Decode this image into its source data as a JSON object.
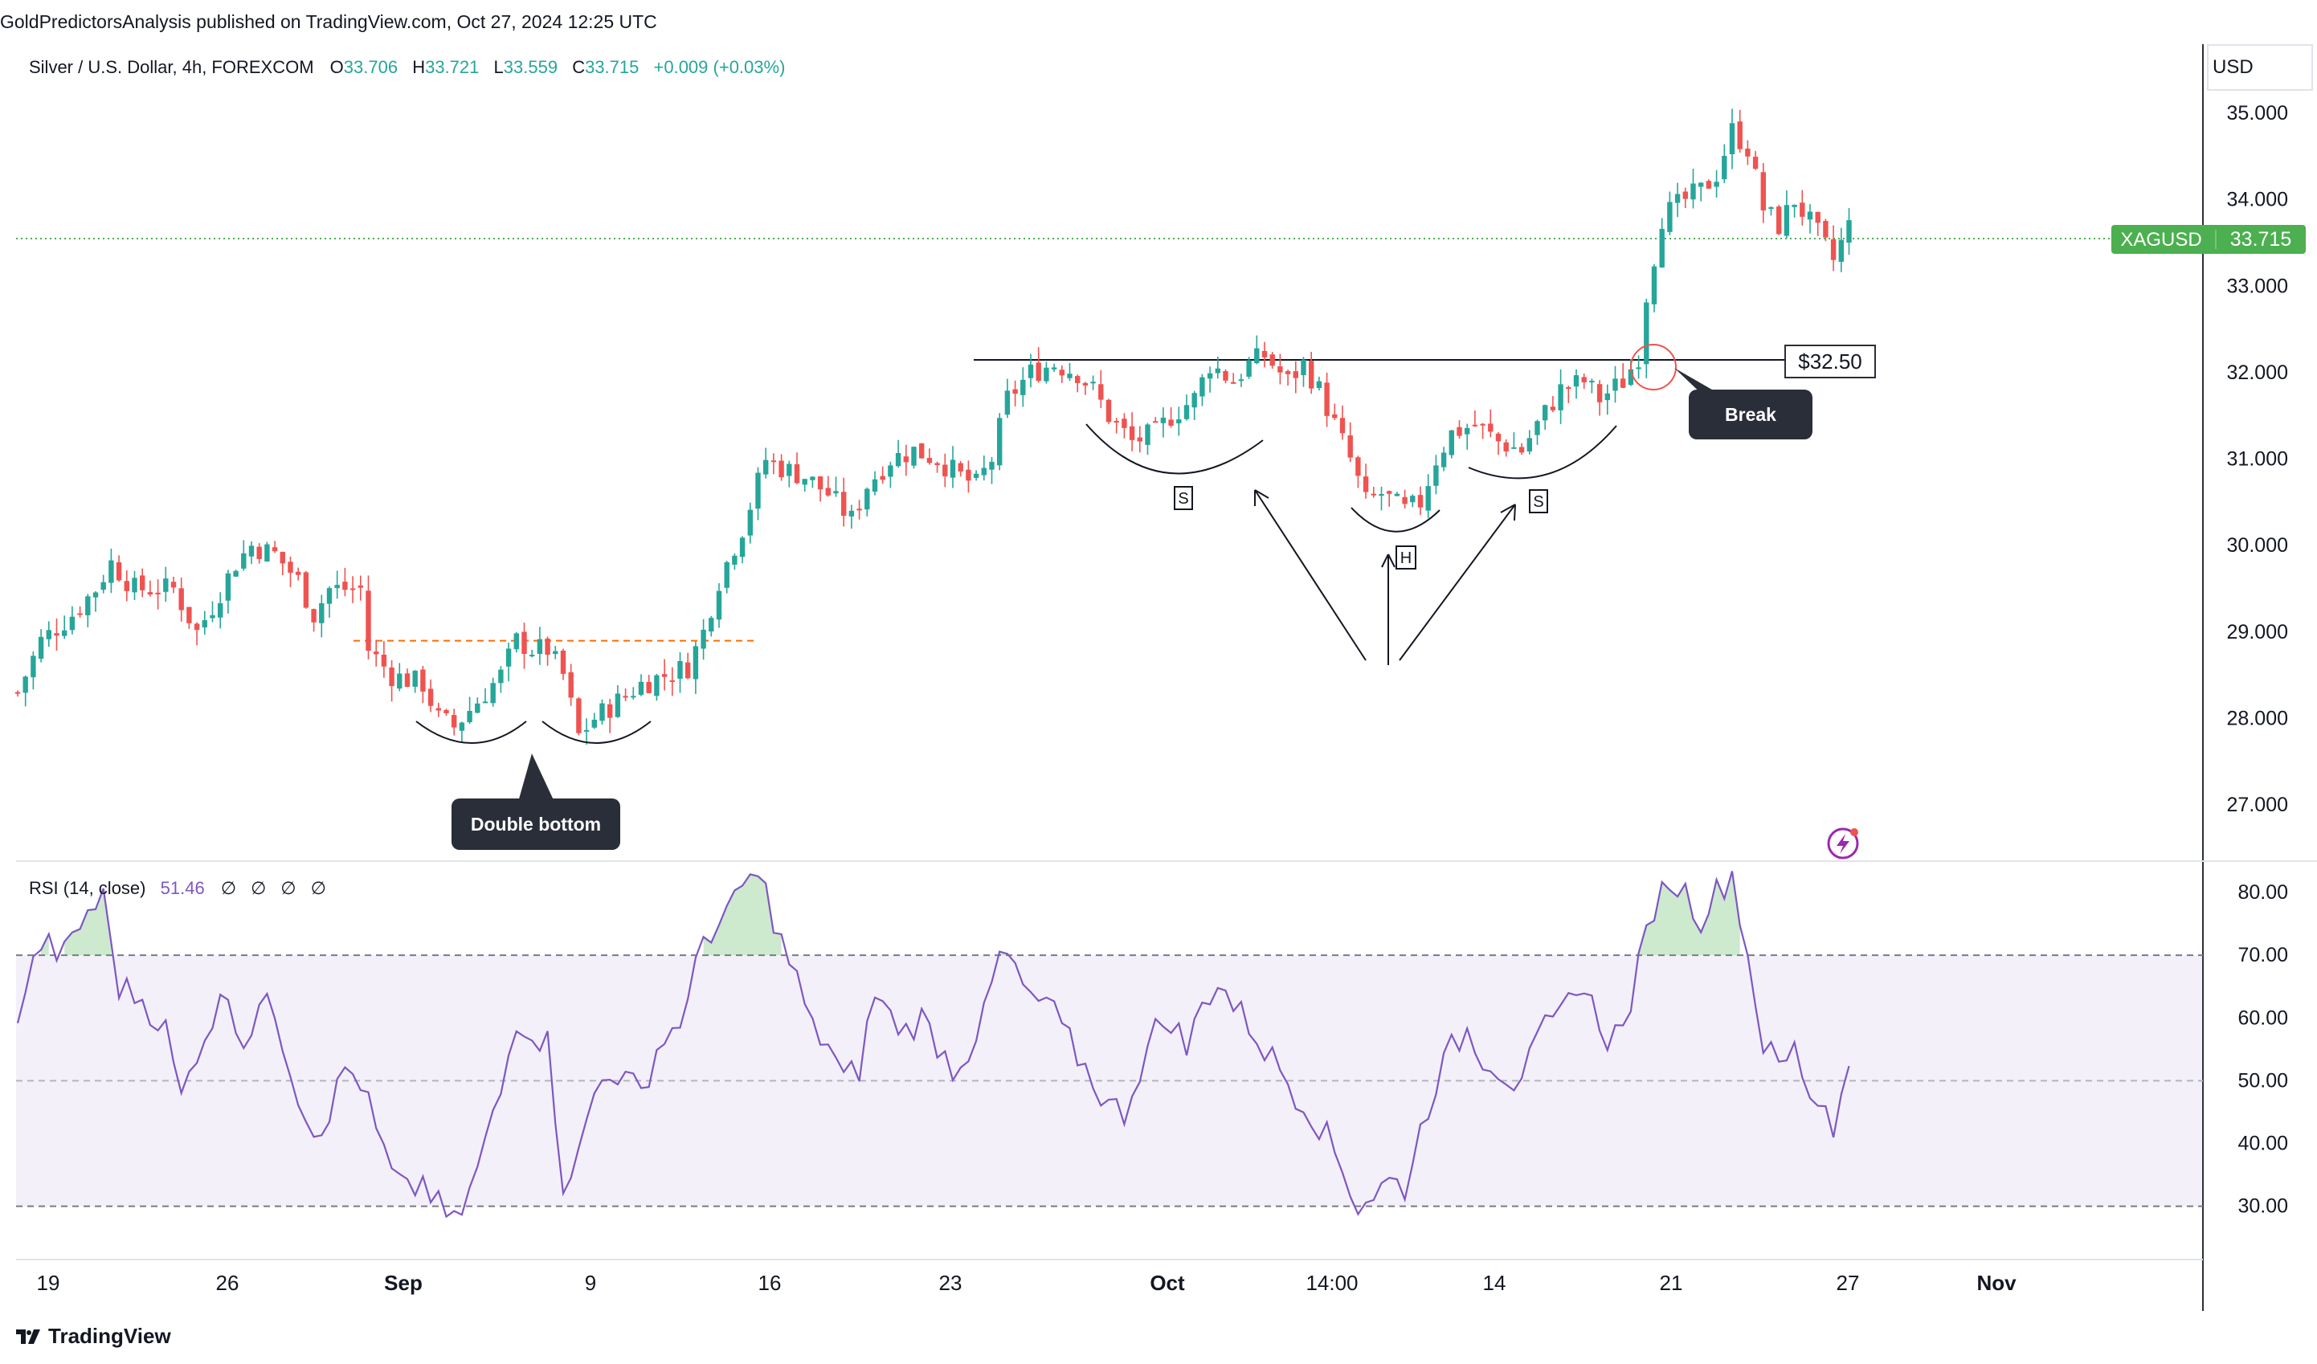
{
  "publisher": "GoldPredictorsAnalysis published on TradingView.com, Oct 27, 2024 12:25 UTC",
  "brand": "TradingView",
  "currency": "USD",
  "legend": {
    "symbol": "Silver / U.S. Dollar, 4h, FOREXCOM",
    "o_label": "O",
    "o": "33.706",
    "h_label": "H",
    "h": "33.721",
    "l_label": "L",
    "l": "33.559",
    "c_label": "C",
    "c": "33.715",
    "change": "+0.009 (+0.03%)"
  },
  "price_tag": {
    "symbol": "XAGUSD",
    "value": "33.715"
  },
  "rsi_legend": {
    "name": "RSI (14, close)",
    "value": "51.46",
    "extras": [
      "∅",
      "∅",
      "∅",
      "∅"
    ]
  },
  "annotations": {
    "double_bottom": "Double bottom",
    "break": "Break",
    "level": "$32.50",
    "shoulder_left": "S",
    "head": "H",
    "shoulder_right": "S"
  },
  "colors": {
    "up": "#26a69a",
    "down": "#ef5350",
    "rsi": "#7e57c2",
    "tag": "#4caf50",
    "callout": "#2a2e39"
  },
  "chart_data": [
    {
      "type": "candlestick",
      "title": "Silver / U.S. Dollar, 4h, FOREXCOM",
      "y_axis": {
        "ticks": [
          35.0,
          34.0,
          33.0,
          32.0,
          31.0,
          30.0,
          29.0,
          28.0,
          27.0
        ],
        "tick_labels": [
          "35.000",
          "34.000",
          "33.000",
          "32.000",
          "31.000",
          "30.000",
          "29.000",
          "28.000",
          "27.000"
        ],
        "range": [
          26.35,
          35.8
        ]
      },
      "x_axis": {
        "tick_labels": [
          "19",
          "26",
          "Sep",
          "9",
          "16",
          "23",
          "Oct",
          "14:00",
          "14",
          "21",
          "27",
          "Nov"
        ]
      },
      "close_path": [
        [
          0,
          28.3
        ],
        [
          3,
          28.9
        ],
        [
          7,
          29.2
        ],
        [
          10,
          29.5
        ],
        [
          12,
          29.8
        ],
        [
          15,
          29.5
        ],
        [
          20,
          29.5
        ],
        [
          23,
          29.0
        ],
        [
          25,
          29.3
        ],
        [
          28,
          29.8
        ],
        [
          30,
          30.0
        ],
        [
          33,
          29.9
        ],
        [
          36,
          29.6
        ],
        [
          38,
          29.2
        ],
        [
          40,
          29.5
        ],
        [
          44,
          29.5
        ],
        [
          45,
          28.8
        ],
        [
          48,
          28.5
        ],
        [
          52,
          28.4
        ],
        [
          54,
          28.0
        ],
        [
          56,
          27.9
        ],
        [
          58,
          28.1
        ],
        [
          62,
          28.5
        ],
        [
          64,
          28.9
        ],
        [
          66,
          28.8
        ],
        [
          68,
          28.8
        ],
        [
          70,
          28.5
        ],
        [
          72,
          27.8
        ],
        [
          74,
          28.0
        ],
        [
          77,
          28.2
        ],
        [
          80,
          28.4
        ],
        [
          83,
          28.5
        ],
        [
          86,
          28.6
        ],
        [
          88,
          29.0
        ],
        [
          90,
          29.6
        ],
        [
          93,
          30.2
        ],
        [
          96,
          31.0
        ],
        [
          98,
          30.9
        ],
        [
          101,
          30.8
        ],
        [
          104,
          30.6
        ],
        [
          107,
          30.3
        ],
        [
          109,
          30.7
        ],
        [
          112,
          31.0
        ],
        [
          115,
          31.1
        ],
        [
          118,
          31.0
        ],
        [
          121,
          30.8
        ],
        [
          123,
          30.7
        ],
        [
          125,
          31.0
        ],
        [
          127,
          31.7
        ],
        [
          130,
          32.0
        ],
        [
          133,
          32.1
        ],
        [
          136,
          32.0
        ],
        [
          138,
          31.8
        ],
        [
          140,
          31.5
        ],
        [
          143,
          31.2
        ],
        [
          146,
          31.3
        ],
        [
          148,
          31.5
        ],
        [
          151,
          31.7
        ],
        [
          153,
          32.1
        ],
        [
          156,
          31.9
        ],
        [
          158,
          32.1
        ],
        [
          160,
          32.2
        ],
        [
          163,
          31.9
        ],
        [
          165,
          32.1
        ],
        [
          167,
          31.8
        ],
        [
          169,
          31.4
        ],
        [
          171,
          31.0
        ],
        [
          173,
          30.5
        ],
        [
          175,
          30.6
        ],
        [
          178,
          30.4
        ],
        [
          180,
          30.5
        ],
        [
          182,
          31.0
        ],
        [
          184,
          31.3
        ],
        [
          187,
          31.4
        ],
        [
          190,
          31.2
        ],
        [
          193,
          31.1
        ],
        [
          195,
          31.4
        ],
        [
          198,
          31.8
        ],
        [
          201,
          31.9
        ],
        [
          203,
          31.7
        ],
        [
          206,
          31.9
        ],
        [
          208,
          32.2
        ],
        [
          209,
          32.9
        ],
        [
          211,
          33.8
        ],
        [
          214,
          34.0
        ],
        [
          216,
          34.1
        ],
        [
          218,
          34.3
        ],
        [
          220,
          34.8
        ],
        [
          222,
          34.6
        ],
        [
          224,
          33.9
        ],
        [
          226,
          33.7
        ],
        [
          228,
          34.0
        ],
        [
          231,
          33.6
        ],
        [
          233,
          33.3
        ],
        [
          235,
          33.7
        ]
      ],
      "marked_level": 32.3,
      "current_price": 33.715,
      "dashed_level": 28.9
    },
    {
      "type": "line",
      "title": "RSI (14, close)",
      "y_axis": {
        "ticks": [
          80,
          70,
          60,
          50,
          40,
          30
        ],
        "tick_labels": [
          "80.00",
          "70.00",
          "60.00",
          "50.00",
          "40.00",
          "30.00"
        ],
        "range": [
          21.5,
          85
        ]
      },
      "bands": [
        70,
        50,
        30
      ],
      "series": [
        {
          "values": [
            [
              0,
              61
            ],
            [
              3,
              72
            ],
            [
              6,
              70
            ],
            [
              9,
              77
            ],
            [
              11,
              79
            ],
            [
              13,
              65
            ],
            [
              16,
              63
            ],
            [
              19,
              58
            ],
            [
              21,
              47
            ],
            [
              23,
              55
            ],
            [
              25,
              60
            ],
            [
              27,
              64
            ],
            [
              29,
              56
            ],
            [
              31,
              62
            ],
            [
              33,
              61
            ],
            [
              36,
              48
            ],
            [
              38,
              42
            ],
            [
              40,
              45
            ],
            [
              42,
              52
            ],
            [
              44,
              50
            ],
            [
              46,
              42
            ],
            [
              48,
              35
            ],
            [
              50,
              32
            ],
            [
              52,
              34
            ],
            [
              54,
              30
            ],
            [
              56,
              27
            ],
            [
              58,
              32
            ],
            [
              60,
              40
            ],
            [
              62,
              48
            ],
            [
              64,
              60
            ],
            [
              66,
              58
            ],
            [
              68,
              56
            ],
            [
              70,
              34
            ],
            [
              72,
              38
            ],
            [
              74,
              48
            ],
            [
              76,
              52
            ],
            [
              78,
              50
            ],
            [
              80,
              48
            ],
            [
              82,
              55
            ],
            [
              84,
              58
            ],
            [
              86,
              62
            ],
            [
              88,
              73
            ],
            [
              90,
              75
            ],
            [
              92,
              78
            ],
            [
              94,
              83
            ],
            [
              96,
              80
            ],
            [
              98,
              72
            ],
            [
              100,
              66
            ],
            [
              102,
              58
            ],
            [
              104,
              56
            ],
            [
              106,
              50
            ],
            [
              108,
              52
            ],
            [
              110,
              64
            ],
            [
              112,
              60
            ],
            [
              114,
              58
            ],
            [
              116,
              60
            ],
            [
              118,
              56
            ],
            [
              120,
              52
            ],
            [
              122,
              55
            ],
            [
              124,
              60
            ],
            [
              126,
              70
            ],
            [
              128,
              68
            ],
            [
              130,
              62
            ],
            [
              132,
              63
            ],
            [
              134,
              58
            ],
            [
              136,
              54
            ],
            [
              138,
              50
            ],
            [
              140,
              46
            ],
            [
              142,
              45
            ],
            [
              144,
              52
            ],
            [
              146,
              58
            ],
            [
              148,
              60
            ],
            [
              150,
              55
            ],
            [
              152,
              62
            ],
            [
              154,
              66
            ],
            [
              156,
              62
            ],
            [
              158,
              59
            ],
            [
              160,
              55
            ],
            [
              162,
              52
            ],
            [
              164,
              48
            ],
            [
              166,
              45
            ],
            [
              168,
              41
            ],
            [
              170,
              36
            ],
            [
              172,
              30
            ],
            [
              174,
              32
            ],
            [
              176,
              34
            ],
            [
              178,
              33
            ],
            [
              180,
              42
            ],
            [
              182,
              50
            ],
            [
              184,
              55
            ],
            [
              186,
              58
            ],
            [
              188,
              54
            ],
            [
              190,
              52
            ],
            [
              192,
              50
            ],
            [
              194,
              53
            ],
            [
              196,
              58
            ],
            [
              198,
              60
            ],
            [
              200,
              66
            ],
            [
              202,
              62
            ],
            [
              204,
              57
            ],
            [
              206,
              58
            ],
            [
              208,
              68
            ],
            [
              210,
              78
            ],
            [
              212,
              82
            ],
            [
              214,
              80
            ],
            [
              216,
              76
            ],
            [
              218,
              80
            ],
            [
              220,
              83
            ],
            [
              222,
              70
            ],
            [
              224,
              56
            ],
            [
              226,
              52
            ],
            [
              228,
              55
            ],
            [
              230,
              48
            ],
            [
              232,
              46
            ],
            [
              233,
              42
            ],
            [
              234,
              50
            ],
            [
              235,
              51.5
            ]
          ]
        }
      ]
    }
  ]
}
